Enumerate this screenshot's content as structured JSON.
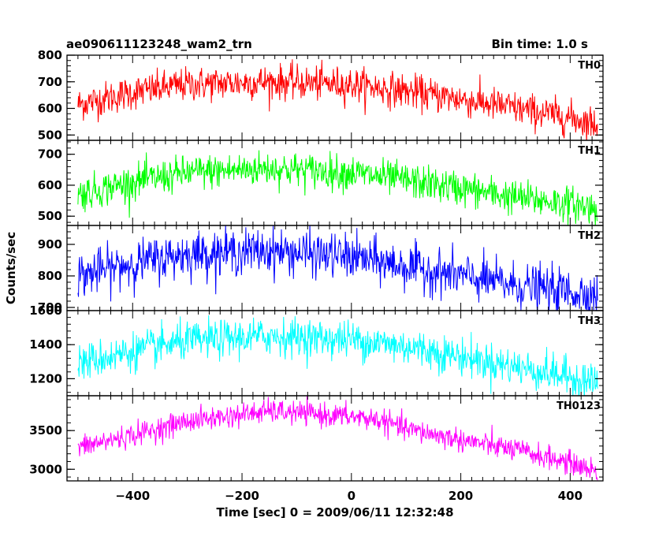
{
  "title_left": "ae090611123248_wam2_trn",
  "title_right": "Bin time: 1.0 s",
  "ylabel": "Counts/sec",
  "xlabel": "Time [sec] 0 = 2009/06/11 12:32:48",
  "chart_data": {
    "type": "line",
    "xlim": [
      -520,
      460
    ],
    "x_range": [
      -500,
      450
    ],
    "bin_time": 1.0,
    "x_ticks": [
      -400,
      -200,
      0,
      200,
      400
    ],
    "x_tick_labels": [
      "−400",
      "−200",
      "0",
      "200",
      "400"
    ],
    "panels": [
      {
        "name": "TH0",
        "color": "#ff0000",
        "ylim": [
          480,
          800
        ],
        "y_ticks": [
          500,
          600,
          700,
          800
        ],
        "y_tick_labels": [
          "500",
          "600",
          "700",
          "800"
        ],
        "trend": [
          [
            -500,
            615
          ],
          [
            -400,
            660
          ],
          [
            -300,
            690
          ],
          [
            -150,
            700
          ],
          [
            0,
            690
          ],
          [
            100,
            665
          ],
          [
            200,
            635
          ],
          [
            300,
            600
          ],
          [
            400,
            565
          ],
          [
            450,
            540
          ]
        ],
        "noise": 32
      },
      {
        "name": "TH1",
        "color": "#00ff00",
        "ylim": [
          470,
          745
        ],
        "y_ticks": [
          500,
          600,
          700
        ],
        "y_tick_labels": [
          "500",
          "600",
          "700"
        ],
        "trend": [
          [
            -500,
            570
          ],
          [
            -400,
            610
          ],
          [
            -300,
            640
          ],
          [
            -150,
            655
          ],
          [
            0,
            640
          ],
          [
            100,
            615
          ],
          [
            200,
            590
          ],
          [
            300,
            560
          ],
          [
            400,
            540
          ],
          [
            450,
            525
          ]
        ],
        "noise": 28
      },
      {
        "name": "TH2",
        "color": "#0000ff",
        "ylim": [
          690,
          960
        ],
        "y_ticks": [
          700,
          800,
          900
        ],
        "y_tick_labels": [
          "700",
          "800",
          "900"
        ],
        "trend": [
          [
            -500,
            800
          ],
          [
            -400,
            840
          ],
          [
            -300,
            870
          ],
          [
            -150,
            880
          ],
          [
            0,
            860
          ],
          [
            100,
            830
          ],
          [
            200,
            800
          ],
          [
            300,
            770
          ],
          [
            400,
            750
          ],
          [
            450,
            740
          ]
        ],
        "noise": 35
      },
      {
        "name": "TH3",
        "color": "#00ffff",
        "ylim": [
          1100,
          1600
        ],
        "y_ticks": [
          1200,
          1400,
          1600
        ],
        "y_tick_labels": [
          "1200",
          "1400",
          "1600"
        ],
        "trend": [
          [
            -500,
            1290
          ],
          [
            -400,
            1360
          ],
          [
            -300,
            1420
          ],
          [
            -150,
            1450
          ],
          [
            0,
            1430
          ],
          [
            100,
            1390
          ],
          [
            200,
            1330
          ],
          [
            300,
            1270
          ],
          [
            400,
            1210
          ],
          [
            450,
            1180
          ]
        ],
        "noise": 55
      },
      {
        "name": "TH0123",
        "color": "#ff00ff",
        "ylim": [
          2850,
          3950
        ],
        "y_ticks": [
          3000,
          3500
        ],
        "y_tick_labels": [
          "3000",
          "3500"
        ],
        "trend": [
          [
            -500,
            3280
          ],
          [
            -400,
            3440
          ],
          [
            -300,
            3620
          ],
          [
            -150,
            3750
          ],
          [
            0,
            3680
          ],
          [
            50,
            3640
          ],
          [
            100,
            3520
          ],
          [
            200,
            3380
          ],
          [
            300,
            3250
          ],
          [
            400,
            3080
          ],
          [
            450,
            2970
          ]
        ],
        "noise": 75
      }
    ]
  }
}
